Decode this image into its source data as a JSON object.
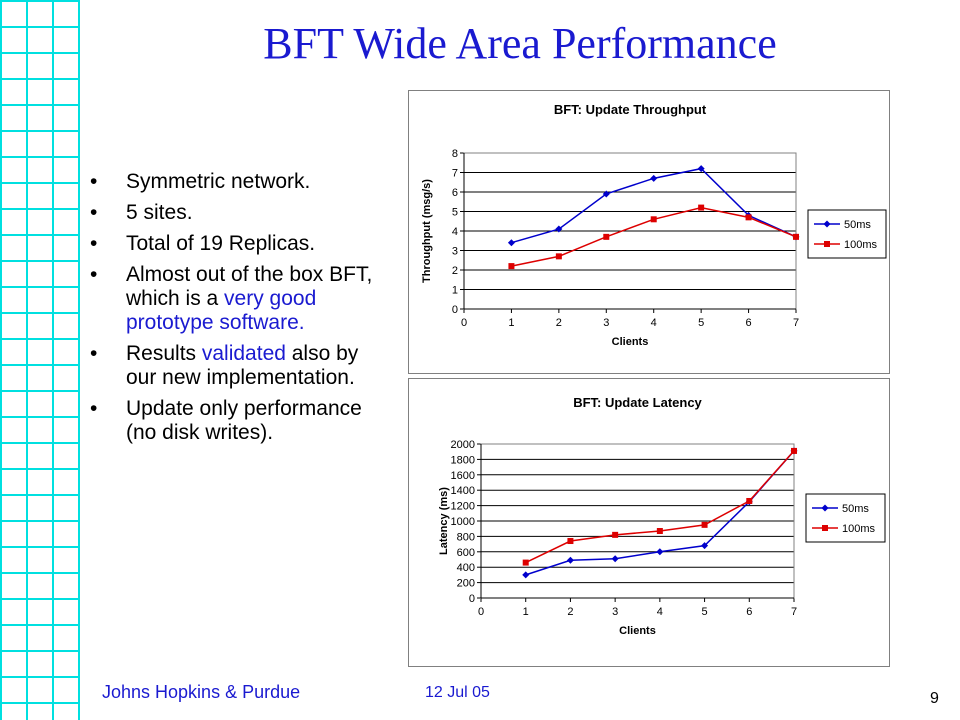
{
  "slide": {
    "title": "BFT Wide Area Performance",
    "footer_left": "Johns Hopkins & Purdue",
    "footer_date": "12 Jul 05",
    "page_number": "9"
  },
  "bullets": [
    {
      "parts": [
        "Symmetric network."
      ]
    },
    {
      "parts": [
        "5 sites."
      ]
    },
    {
      "parts": [
        "Total of 19 Replicas."
      ]
    },
    {
      "parts": [
        "Almost out of the box BFT, which is a ",
        "very good prototype software."
      ]
    },
    {
      "parts": [
        "Results ",
        "validated",
        " also by our new implementation."
      ]
    },
    {
      "parts": [
        "Update only performance (no disk writes)."
      ]
    }
  ],
  "colors": {
    "title": "#1a1ad0",
    "highlight": "#1a1ad0",
    "grid": "#00e0e0",
    "series_50ms": "#0000cc",
    "series_100ms": "#dd0000"
  },
  "chart_data": [
    {
      "type": "line",
      "title": "BFT: Update Throughput",
      "xlabel": "Clients",
      "ylabel": "Throughput (msg/s)",
      "xlim": [
        0,
        7
      ],
      "ylim": [
        0,
        8
      ],
      "xticks": [
        0,
        1,
        2,
        3,
        4,
        5,
        6,
        7
      ],
      "yticks": [
        0,
        1,
        2,
        3,
        4,
        5,
        6,
        7,
        8
      ],
      "grid": "horizontal",
      "legend": "right",
      "series": [
        {
          "name": "50ms",
          "color": "#0000cc",
          "marker": "diamond",
          "x": [
            1,
            2,
            3,
            4,
            5,
            6,
            7
          ],
          "values": [
            3.4,
            4.1,
            5.9,
            6.7,
            7.2,
            4.8,
            3.7
          ]
        },
        {
          "name": "100ms",
          "color": "#dd0000",
          "marker": "square",
          "x": [
            1,
            2,
            3,
            4,
            5,
            6,
            7
          ],
          "values": [
            2.2,
            2.7,
            3.7,
            4.6,
            5.2,
            4.7,
            3.7
          ]
        }
      ]
    },
    {
      "type": "line",
      "title": "BFT: Update Latency",
      "xlabel": "Clients",
      "ylabel": "Latency (ms)",
      "xlim": [
        0,
        7
      ],
      "ylim": [
        0,
        2000
      ],
      "xticks": [
        0,
        1,
        2,
        3,
        4,
        5,
        6,
        7
      ],
      "yticks": [
        0,
        200,
        400,
        600,
        800,
        1000,
        1200,
        1400,
        1600,
        1800,
        2000
      ],
      "grid": "horizontal",
      "legend": "right",
      "series": [
        {
          "name": "50ms",
          "color": "#0000cc",
          "marker": "diamond",
          "x": [
            1,
            2,
            3,
            4,
            5,
            6,
            7
          ],
          "values": [
            300,
            490,
            510,
            600,
            680,
            1250,
            1910
          ]
        },
        {
          "name": "100ms",
          "color": "#dd0000",
          "marker": "square",
          "x": [
            1,
            2,
            3,
            4,
            5,
            6,
            7
          ],
          "values": [
            460,
            740,
            820,
            870,
            950,
            1260,
            1910
          ]
        }
      ]
    }
  ]
}
